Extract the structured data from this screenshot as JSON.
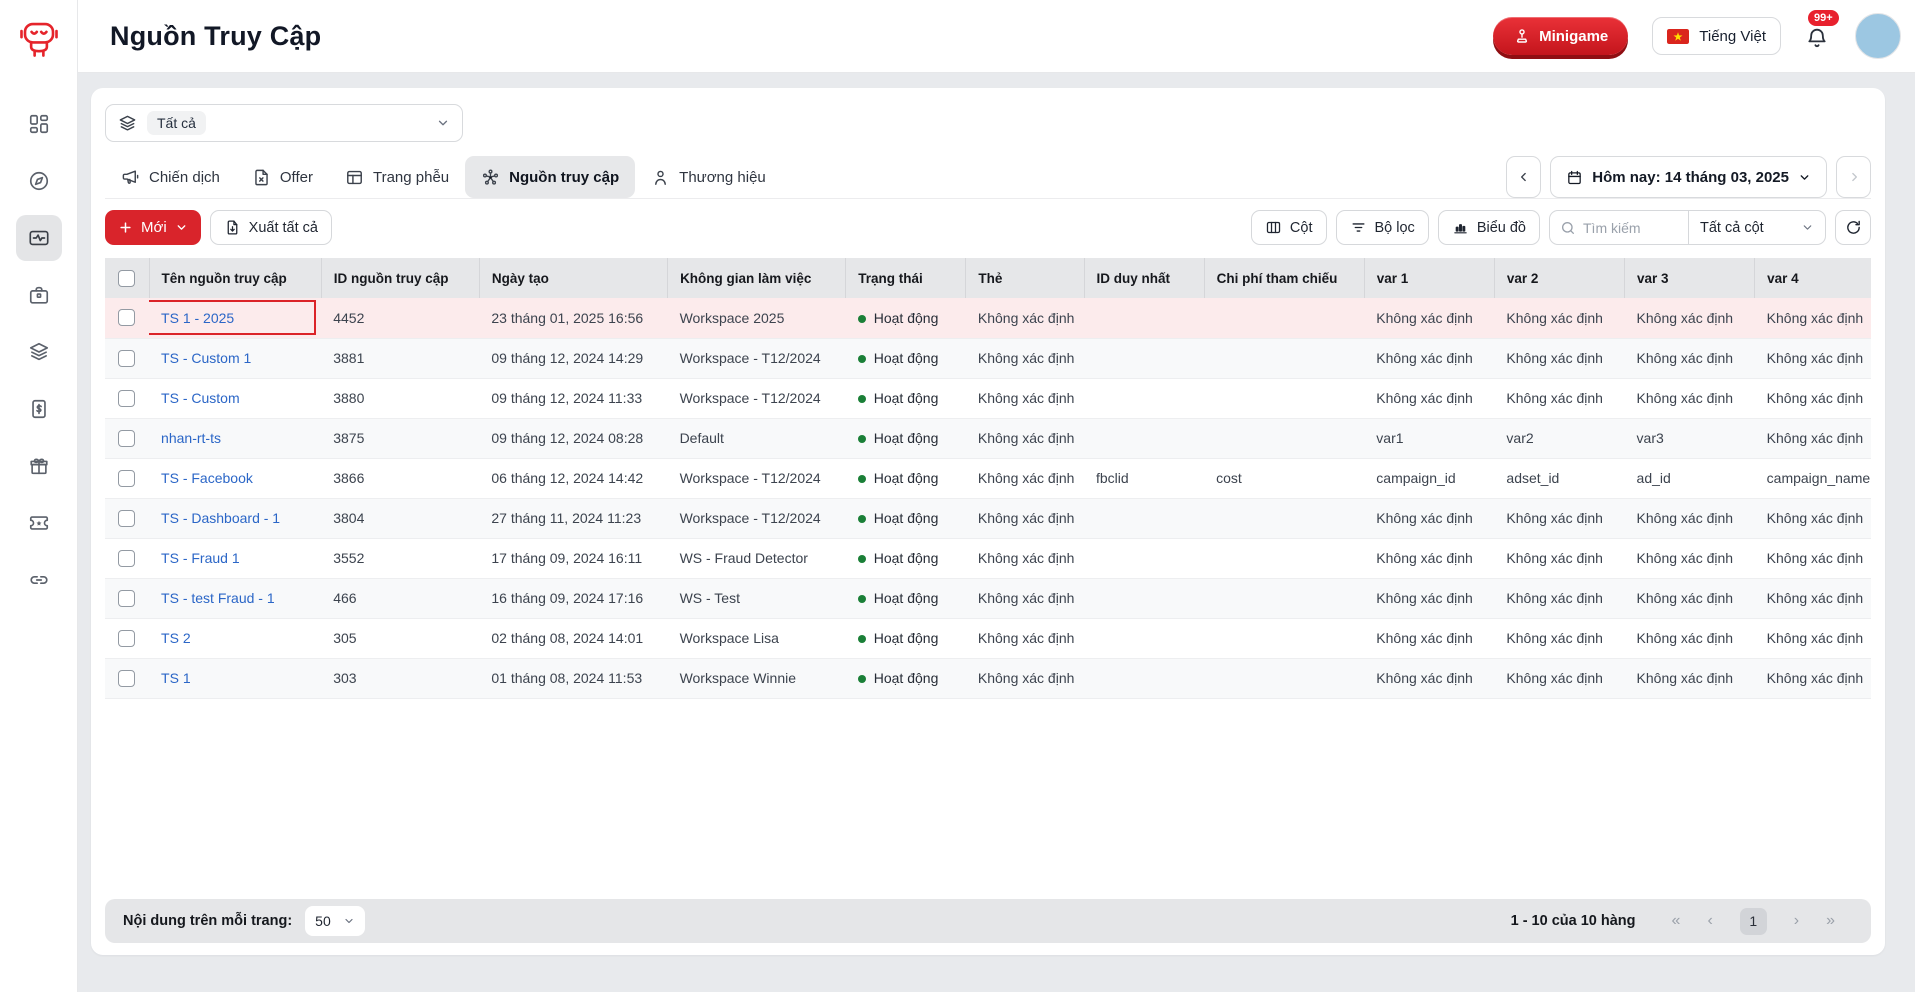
{
  "app": {
    "title": "Nguồn Truy Cập"
  },
  "topbar": {
    "minigame_label": "Minigame",
    "language_label": "Tiếng Việt",
    "notification_count": "99+"
  },
  "sidebar": {
    "logo_icon": "robot-logo",
    "items": [
      {
        "icon": "grid-icon",
        "active": false
      },
      {
        "icon": "compass-icon",
        "active": false
      },
      {
        "icon": "activity-icon",
        "active": true
      },
      {
        "icon": "briefcase-icon",
        "active": false
      },
      {
        "icon": "layers-icon",
        "active": false
      },
      {
        "icon": "invoice-icon",
        "active": false
      },
      {
        "icon": "gift-icon",
        "active": false
      },
      {
        "icon": "ticket-icon",
        "active": false
      },
      {
        "icon": "link-icon",
        "active": false
      }
    ]
  },
  "filters": {
    "workspace_value": "Tất cả",
    "workspace_icon": "layers-icon"
  },
  "tabs": [
    {
      "label": "Chiến dịch",
      "icon": "megaphone-icon",
      "active": false
    },
    {
      "label": "Offer",
      "icon": "file-x-icon",
      "active": false
    },
    {
      "label": "Trang phễu",
      "icon": "layout-icon",
      "active": false
    },
    {
      "label": "Nguồn truy cập",
      "icon": "network-icon",
      "active": true
    },
    {
      "label": "Thương hiệu",
      "icon": "person-icon",
      "active": false
    }
  ],
  "date_picker": {
    "label": "Hôm nay: 14 tháng 03, 2025",
    "icon": "calendar-icon"
  },
  "toolbar": {
    "new_label": "Mới",
    "export_label": "Xuất tất cả",
    "columns_label": "Cột",
    "filter_label": "Bộ lọc",
    "chart_label": "Biểu đồ",
    "search_placeholder": "Tìm kiếm",
    "columns_select_value": "Tất cả cột"
  },
  "table": {
    "columns": [
      {
        "key": "name",
        "label": "Tên nguồn truy cập"
      },
      {
        "key": "id",
        "label": "ID nguồn truy cập"
      },
      {
        "key": "created",
        "label": "Ngày tạo"
      },
      {
        "key": "workspace",
        "label": "Không gian làm việc"
      },
      {
        "key": "status",
        "label": "Trạng thái"
      },
      {
        "key": "tag",
        "label": "Thẻ"
      },
      {
        "key": "unique_id",
        "label": "ID duy nhất"
      },
      {
        "key": "cost_ref",
        "label": "Chi phí tham chiếu"
      },
      {
        "key": "var1",
        "label": "var 1"
      },
      {
        "key": "var2",
        "label": "var 2"
      },
      {
        "key": "var3",
        "label": "var 3"
      },
      {
        "key": "var4",
        "label": "var 4"
      }
    ],
    "rows": [
      {
        "name": "TS 1 - 2025",
        "id": "4452",
        "created": "23 tháng 01, 2025 16:56",
        "workspace": "Workspace 2025",
        "status": "Hoạt động",
        "tag": "Không xác định",
        "unique_id": "",
        "cost_ref": "",
        "var1": "Không xác định",
        "var2": "Không xác định",
        "var3": "Không xác định",
        "var4": "Không xác định",
        "highlighted": true
      },
      {
        "name": "TS - Custom 1",
        "id": "3881",
        "created": "09 tháng 12, 2024 14:29",
        "workspace": "Workspace - T12/2024",
        "status": "Hoạt động",
        "tag": "Không xác định",
        "unique_id": "",
        "cost_ref": "",
        "var1": "Không xác định",
        "var2": "Không xác định",
        "var3": "Không xác định",
        "var4": "Không xác định",
        "highlighted": false
      },
      {
        "name": "TS - Custom",
        "id": "3880",
        "created": "09 tháng 12, 2024 11:33",
        "workspace": "Workspace - T12/2024",
        "status": "Hoạt động",
        "tag": "Không xác định",
        "unique_id": "",
        "cost_ref": "",
        "var1": "Không xác định",
        "var2": "Không xác định",
        "var3": "Không xác định",
        "var4": "Không xác định",
        "highlighted": false
      },
      {
        "name": "nhan-rt-ts",
        "id": "3875",
        "created": "09 tháng 12, 2024 08:28",
        "workspace": "Default",
        "status": "Hoạt động",
        "tag": "Không xác định",
        "unique_id": "",
        "cost_ref": "",
        "var1": "var1",
        "var2": "var2",
        "var3": "var3",
        "var4": "Không xác định",
        "highlighted": false
      },
      {
        "name": "TS - Facebook",
        "id": "3866",
        "created": "06 tháng 12, 2024 14:42",
        "workspace": "Workspace - T12/2024",
        "status": "Hoạt động",
        "tag": "Không xác định",
        "unique_id": "fbclid",
        "cost_ref": "cost",
        "var1": "campaign_id",
        "var2": "adset_id",
        "var3": "ad_id",
        "var4": "campaign_name",
        "highlighted": false
      },
      {
        "name": "TS - Dashboard - 1",
        "id": "3804",
        "created": "27 tháng 11, 2024 11:23",
        "workspace": "Workspace - T12/2024",
        "status": "Hoạt động",
        "tag": "Không xác định",
        "unique_id": "",
        "cost_ref": "",
        "var1": "Không xác định",
        "var2": "Không xác định",
        "var3": "Không xác định",
        "var4": "Không xác định",
        "highlighted": false
      },
      {
        "name": "TS - Fraud 1",
        "id": "3552",
        "created": "17 tháng 09, 2024 16:11",
        "workspace": "WS - Fraud Detector",
        "status": "Hoạt động",
        "tag": "Không xác định",
        "unique_id": "",
        "cost_ref": "",
        "var1": "Không xác định",
        "var2": "Không xác định",
        "var3": "Không xác định",
        "var4": "Không xác định",
        "highlighted": false
      },
      {
        "name": "TS - test Fraud - 1",
        "id": "466",
        "created": "16 tháng 09, 2024 17:16",
        "workspace": "WS - Test",
        "status": "Hoạt động",
        "tag": "Không xác định",
        "unique_id": "",
        "cost_ref": "",
        "var1": "Không xác định",
        "var2": "Không xác định",
        "var3": "Không xác định",
        "var4": "Không xác định",
        "highlighted": false
      },
      {
        "name": "TS 2",
        "id": "305",
        "created": "02 tháng 08, 2024 14:01",
        "workspace": "Workspace Lisa",
        "status": "Hoạt động",
        "tag": "Không xác định",
        "unique_id": "",
        "cost_ref": "",
        "var1": "Không xác định",
        "var2": "Không xác định",
        "var3": "Không xác định",
        "var4": "Không xác định",
        "highlighted": false
      },
      {
        "name": "TS 1",
        "id": "303",
        "created": "01 tháng 08, 2024 11:53",
        "workspace": "Workspace Winnie",
        "status": "Hoạt động",
        "tag": "Không xác định",
        "unique_id": "",
        "cost_ref": "",
        "var1": "Không xác định",
        "var2": "Không xác định",
        "var3": "Không xác định",
        "var4": "Không xác định",
        "highlighted": false
      }
    ]
  },
  "pagination": {
    "per_page_label": "Nội dung trên mỗi trang:",
    "per_page_value": "50",
    "range_label": "1 - 10 của 10 hàng",
    "first": "«",
    "prev": "‹",
    "page": "1",
    "next": "›",
    "last": "»"
  },
  "colors": {
    "primary_red": "#d9242b",
    "link_blue": "#2b66c7",
    "status_green": "#1a7f37",
    "highlight_row": "#fcebec",
    "highlight_border": "#db2328"
  }
}
